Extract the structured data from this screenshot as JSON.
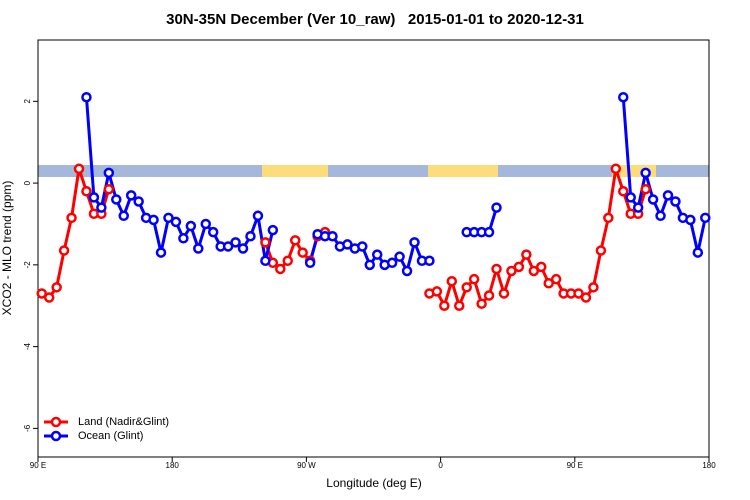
{
  "chart_data": {
    "type": "line",
    "title": "30N-35N December (Ver 10_raw)   2015-01-01 to 2020-12-31",
    "xlabel": "Longitude (deg E)",
    "ylabel": "XCO2 - MLO trend (ppm)",
    "xlim": [
      90,
      540
    ],
    "ylim": [
      -6.7,
      3.5
    ],
    "xticks": [
      {
        "value": 90,
        "label": "90 E"
      },
      {
        "value": 180,
        "label": "180"
      },
      {
        "value": 270,
        "label": "90 W"
      },
      {
        "value": 360,
        "label": "0"
      },
      {
        "value": 450,
        "label": "90 E"
      },
      {
        "value": 540,
        "label": "180"
      }
    ],
    "yticks": [
      2,
      0,
      -2,
      -4,
      -6
    ],
    "legend": "bottom-left",
    "x": [
      92.5,
      97.5,
      102.5,
      107.5,
      112.5,
      117.5,
      122.5,
      127.5,
      132.5,
      137.5,
      142.5,
      147.5,
      152.5,
      157.5,
      162.5,
      167.5,
      172.5,
      177.5,
      182.5,
      187.5,
      192.5,
      197.5,
      202.5,
      207.5,
      212.5,
      217.5,
      222.5,
      227.5,
      232.5,
      237.5,
      242.5,
      247.5,
      252.5,
      257.5,
      262.5,
      267.5,
      272.5,
      277.5,
      282.5,
      287.5,
      292.5,
      297.5,
      302.5,
      307.5,
      312.5,
      317.5,
      322.5,
      327.5,
      332.5,
      337.5,
      342.5,
      347.5,
      352.5,
      357.5,
      362.5,
      367.5,
      372.5,
      377.5,
      382.5,
      387.5,
      392.5,
      397.5,
      402.5,
      407.5,
      412.5,
      417.5,
      422.5,
      427.5,
      432.5,
      437.5,
      442.5,
      447.5,
      452.5,
      457.5,
      462.5,
      467.5,
      472.5,
      477.5,
      482.5,
      487.5,
      492.5,
      497.5,
      502.5,
      507.5,
      512.5,
      517.5,
      522.5,
      527.5,
      532.5,
      537.5
    ],
    "series": [
      {
        "name": "Land (Nadir&Glint)",
        "color": "#ff0000",
        "values": [
          -2.7,
          -2.8,
          -2.55,
          -1.65,
          -0.85,
          0.35,
          -0.2,
          -0.75,
          -0.75,
          -0.15,
          null,
          null,
          null,
          null,
          null,
          null,
          null,
          null,
          null,
          null,
          null,
          null,
          null,
          null,
          null,
          null,
          null,
          null,
          null,
          null,
          -1.45,
          -1.95,
          -2.1,
          -1.9,
          -1.4,
          -1.7,
          -1.9,
          -1.3,
          -1.2,
          null,
          null,
          null,
          null,
          null,
          null,
          null,
          null,
          null,
          null,
          null,
          null,
          null,
          -2.7,
          -2.65,
          -3.0,
          -2.4,
          -3.0,
          -2.55,
          -2.35,
          -2.95,
          -2.75,
          -2.1,
          -2.7,
          -2.15,
          -2.05,
          -1.75,
          -2.15,
          -2.05,
          -2.45,
          -2.35,
          -2.7,
          -2.7,
          -2.7,
          -2.8,
          -2.55,
          -1.65,
          -0.85,
          0.35,
          -0.2,
          -0.75,
          -0.75,
          -0.15,
          null,
          null,
          null,
          null,
          null,
          null,
          null,
          null
        ]
      },
      {
        "name": "Ocean (Glint)",
        "color": "#0000ff",
        "values": [
          null,
          null,
          null,
          null,
          null,
          null,
          2.1,
          -0.35,
          -0.6,
          0.25,
          -0.4,
          -0.8,
          -0.3,
          -0.45,
          -0.85,
          -0.9,
          -1.7,
          -0.85,
          -0.95,
          -1.35,
          -1.05,
          -1.6,
          -1.0,
          -1.2,
          -1.55,
          -1.55,
          -1.45,
          -1.6,
          -1.3,
          -0.8,
          -1.9,
          -1.15,
          null,
          null,
          null,
          null,
          -1.95,
          -1.25,
          -1.3,
          -1.3,
          -1.55,
          -1.5,
          -1.6,
          -1.55,
          -2.0,
          -1.75,
          -2.0,
          -1.95,
          -1.8,
          -2.15,
          -1.45,
          -1.9,
          -1.9,
          null,
          null,
          null,
          null,
          -1.2,
          -1.2,
          -1.2,
          -1.2,
          -0.6,
          null,
          null,
          null,
          null,
          null,
          null,
          null,
          null,
          null,
          null,
          null,
          null,
          null,
          null,
          null,
          null,
          2.1,
          -0.35,
          -0.6,
          0.25,
          -0.4,
          -0.8,
          -0.3,
          -0.45,
          -0.85,
          -0.9,
          -1.7,
          -0.85
        ]
      }
    ]
  }
}
